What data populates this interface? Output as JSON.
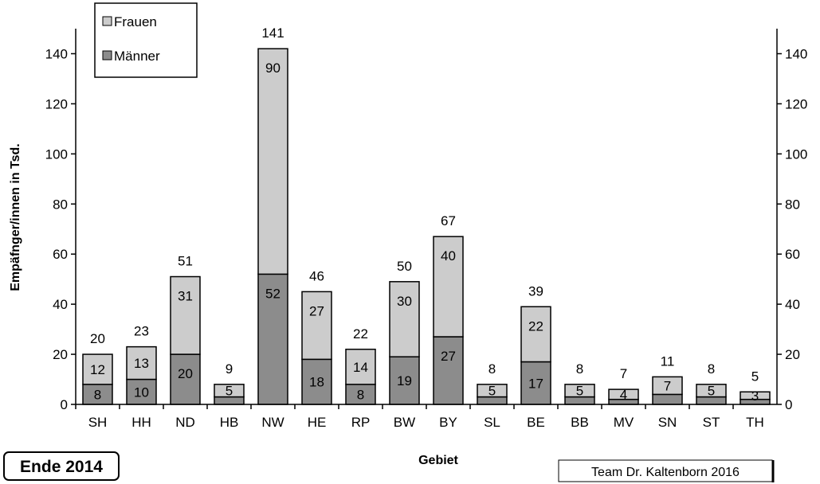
{
  "chart_data": {
    "type": "bar",
    "stacked": true,
    "categories": [
      "SH",
      "HH",
      "ND",
      "HB",
      "NW",
      "HE",
      "RP",
      "BW",
      "BY",
      "SL",
      "BE",
      "BB",
      "MV",
      "SN",
      "ST",
      "TH"
    ],
    "series": [
      {
        "name": "Männer",
        "values": [
          8,
          10,
          20,
          3,
          52,
          18,
          8,
          19,
          27,
          3,
          17,
          3,
          2,
          4,
          3,
          2
        ],
        "labels": [
          "8",
          "10",
          "20",
          "",
          "52",
          "18",
          "8",
          "19",
          "27",
          "",
          "17",
          "",
          "",
          "",
          "",
          ""
        ],
        "color": "#8c8c8c"
      },
      {
        "name": "Frauen",
        "values": [
          12,
          13,
          31,
          5,
          90,
          27,
          14,
          30,
          40,
          5,
          22,
          5,
          4,
          7,
          5,
          3
        ],
        "labels": [
          "12",
          "13",
          "31",
          "5",
          "90",
          "27",
          "14",
          "30",
          "40",
          "5",
          "22",
          "5",
          "4",
          "7",
          "5",
          "3"
        ],
        "color": "#cccccc"
      }
    ],
    "totals": [
      20,
      23,
      51,
      9,
      141,
      46,
      22,
      50,
      67,
      8,
      39,
      8,
      7,
      11,
      8,
      5
    ],
    "ylim": [
      0,
      150
    ],
    "yticks": [
      0,
      20,
      40,
      60,
      80,
      100,
      120,
      140
    ],
    "secondary_y_axis": true,
    "xlabel": "Gebiet",
    "ylabel": "Empäfnger/innen in Tsd.",
    "legend": {
      "placement": "top-left",
      "entries": [
        "Frauen",
        "Männer"
      ]
    },
    "grid": false
  },
  "annotations": {
    "stamp": "Ende 2014",
    "credit": "Team Dr. Kaltenborn 2016"
  }
}
